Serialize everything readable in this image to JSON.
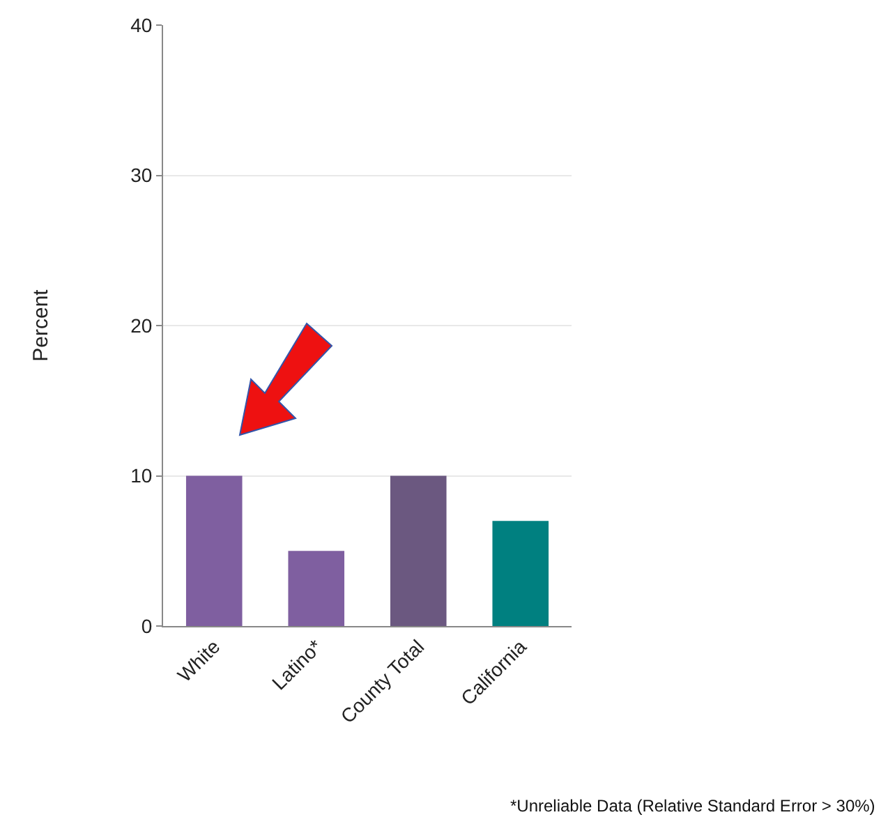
{
  "chart_data": {
    "type": "bar",
    "ylabel": "Percent",
    "categories": [
      "White",
      "Latino*",
      "County Total",
      "California"
    ],
    "values": [
      10,
      5,
      10,
      7
    ],
    "colors": [
      "#7f5fa0",
      "#7f5fa0",
      "#6b5880",
      "#008080"
    ],
    "ylim": [
      0,
      40
    ],
    "yticks": [
      0,
      10,
      20,
      30,
      40
    ],
    "grid": "y",
    "annotations": [
      "*Unreliable Data (Relative Standard Error > 30%)"
    ]
  }
}
